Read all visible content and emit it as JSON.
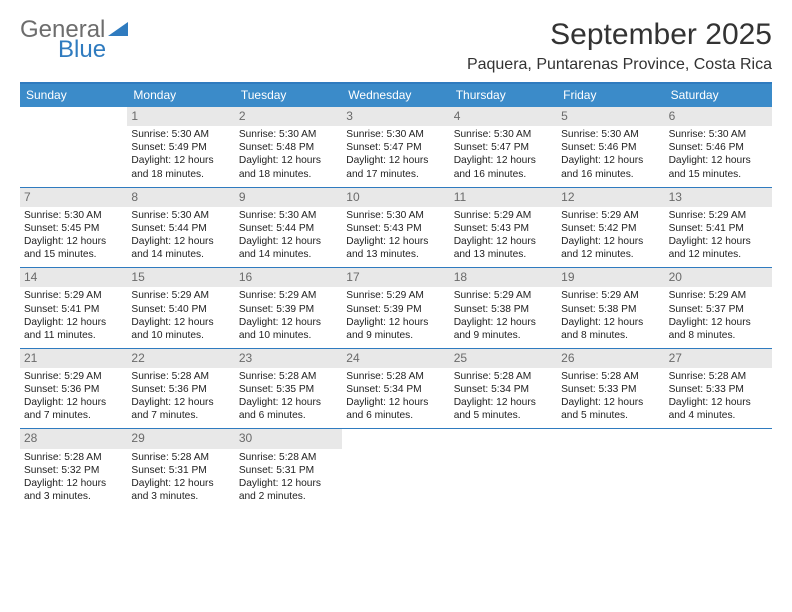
{
  "logo": {
    "word1": "General",
    "word2": "Blue"
  },
  "title": "September 2025",
  "location": "Paquera, Puntarenas Province, Costa Rica",
  "colors": {
    "header_bg": "#3b8bc9",
    "header_text": "#ffffff",
    "rule": "#2f7bbf",
    "daynum_bg": "#e8e8e8",
    "daynum_text": "#6a6a6a",
    "body_text": "#222222",
    "logo_gray": "#6d6d6d",
    "logo_blue": "#2f7bbf"
  },
  "day_headers": [
    "Sunday",
    "Monday",
    "Tuesday",
    "Wednesday",
    "Thursday",
    "Friday",
    "Saturday"
  ],
  "weeks": [
    [
      {
        "num": "",
        "sr": "",
        "ss": "",
        "dl": ""
      },
      {
        "num": "1",
        "sr": "Sunrise: 5:30 AM",
        "ss": "Sunset: 5:49 PM",
        "dl": "Daylight: 12 hours and 18 minutes."
      },
      {
        "num": "2",
        "sr": "Sunrise: 5:30 AM",
        "ss": "Sunset: 5:48 PM",
        "dl": "Daylight: 12 hours and 18 minutes."
      },
      {
        "num": "3",
        "sr": "Sunrise: 5:30 AM",
        "ss": "Sunset: 5:47 PM",
        "dl": "Daylight: 12 hours and 17 minutes."
      },
      {
        "num": "4",
        "sr": "Sunrise: 5:30 AM",
        "ss": "Sunset: 5:47 PM",
        "dl": "Daylight: 12 hours and 16 minutes."
      },
      {
        "num": "5",
        "sr": "Sunrise: 5:30 AM",
        "ss": "Sunset: 5:46 PM",
        "dl": "Daylight: 12 hours and 16 minutes."
      },
      {
        "num": "6",
        "sr": "Sunrise: 5:30 AM",
        "ss": "Sunset: 5:46 PM",
        "dl": "Daylight: 12 hours and 15 minutes."
      }
    ],
    [
      {
        "num": "7",
        "sr": "Sunrise: 5:30 AM",
        "ss": "Sunset: 5:45 PM",
        "dl": "Daylight: 12 hours and 15 minutes."
      },
      {
        "num": "8",
        "sr": "Sunrise: 5:30 AM",
        "ss": "Sunset: 5:44 PM",
        "dl": "Daylight: 12 hours and 14 minutes."
      },
      {
        "num": "9",
        "sr": "Sunrise: 5:30 AM",
        "ss": "Sunset: 5:44 PM",
        "dl": "Daylight: 12 hours and 14 minutes."
      },
      {
        "num": "10",
        "sr": "Sunrise: 5:30 AM",
        "ss": "Sunset: 5:43 PM",
        "dl": "Daylight: 12 hours and 13 minutes."
      },
      {
        "num": "11",
        "sr": "Sunrise: 5:29 AM",
        "ss": "Sunset: 5:43 PM",
        "dl": "Daylight: 12 hours and 13 minutes."
      },
      {
        "num": "12",
        "sr": "Sunrise: 5:29 AM",
        "ss": "Sunset: 5:42 PM",
        "dl": "Daylight: 12 hours and 12 minutes."
      },
      {
        "num": "13",
        "sr": "Sunrise: 5:29 AM",
        "ss": "Sunset: 5:41 PM",
        "dl": "Daylight: 12 hours and 12 minutes."
      }
    ],
    [
      {
        "num": "14",
        "sr": "Sunrise: 5:29 AM",
        "ss": "Sunset: 5:41 PM",
        "dl": "Daylight: 12 hours and 11 minutes."
      },
      {
        "num": "15",
        "sr": "Sunrise: 5:29 AM",
        "ss": "Sunset: 5:40 PM",
        "dl": "Daylight: 12 hours and 10 minutes."
      },
      {
        "num": "16",
        "sr": "Sunrise: 5:29 AM",
        "ss": "Sunset: 5:39 PM",
        "dl": "Daylight: 12 hours and 10 minutes."
      },
      {
        "num": "17",
        "sr": "Sunrise: 5:29 AM",
        "ss": "Sunset: 5:39 PM",
        "dl": "Daylight: 12 hours and 9 minutes."
      },
      {
        "num": "18",
        "sr": "Sunrise: 5:29 AM",
        "ss": "Sunset: 5:38 PM",
        "dl": "Daylight: 12 hours and 9 minutes."
      },
      {
        "num": "19",
        "sr": "Sunrise: 5:29 AM",
        "ss": "Sunset: 5:38 PM",
        "dl": "Daylight: 12 hours and 8 minutes."
      },
      {
        "num": "20",
        "sr": "Sunrise: 5:29 AM",
        "ss": "Sunset: 5:37 PM",
        "dl": "Daylight: 12 hours and 8 minutes."
      }
    ],
    [
      {
        "num": "21",
        "sr": "Sunrise: 5:29 AM",
        "ss": "Sunset: 5:36 PM",
        "dl": "Daylight: 12 hours and 7 minutes."
      },
      {
        "num": "22",
        "sr": "Sunrise: 5:28 AM",
        "ss": "Sunset: 5:36 PM",
        "dl": "Daylight: 12 hours and 7 minutes."
      },
      {
        "num": "23",
        "sr": "Sunrise: 5:28 AM",
        "ss": "Sunset: 5:35 PM",
        "dl": "Daylight: 12 hours and 6 minutes."
      },
      {
        "num": "24",
        "sr": "Sunrise: 5:28 AM",
        "ss": "Sunset: 5:34 PM",
        "dl": "Daylight: 12 hours and 6 minutes."
      },
      {
        "num": "25",
        "sr": "Sunrise: 5:28 AM",
        "ss": "Sunset: 5:34 PM",
        "dl": "Daylight: 12 hours and 5 minutes."
      },
      {
        "num": "26",
        "sr": "Sunrise: 5:28 AM",
        "ss": "Sunset: 5:33 PM",
        "dl": "Daylight: 12 hours and 5 minutes."
      },
      {
        "num": "27",
        "sr": "Sunrise: 5:28 AM",
        "ss": "Sunset: 5:33 PM",
        "dl": "Daylight: 12 hours and 4 minutes."
      }
    ],
    [
      {
        "num": "28",
        "sr": "Sunrise: 5:28 AM",
        "ss": "Sunset: 5:32 PM",
        "dl": "Daylight: 12 hours and 3 minutes."
      },
      {
        "num": "29",
        "sr": "Sunrise: 5:28 AM",
        "ss": "Sunset: 5:31 PM",
        "dl": "Daylight: 12 hours and 3 minutes."
      },
      {
        "num": "30",
        "sr": "Sunrise: 5:28 AM",
        "ss": "Sunset: 5:31 PM",
        "dl": "Daylight: 12 hours and 2 minutes."
      },
      {
        "num": "",
        "sr": "",
        "ss": "",
        "dl": ""
      },
      {
        "num": "",
        "sr": "",
        "ss": "",
        "dl": ""
      },
      {
        "num": "",
        "sr": "",
        "ss": "",
        "dl": ""
      },
      {
        "num": "",
        "sr": "",
        "ss": "",
        "dl": ""
      }
    ]
  ]
}
